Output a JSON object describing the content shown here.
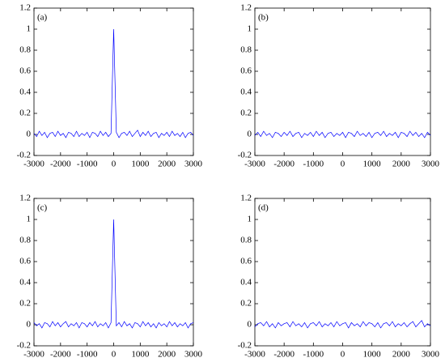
{
  "chart_data": [
    {
      "type": "line",
      "label": "(a)",
      "color": "#0000ff",
      "x": [
        -3000,
        -2900,
        -2800,
        -2700,
        -2600,
        -2500,
        -2400,
        -2300,
        -2200,
        -2100,
        -2000,
        -1900,
        -1800,
        -1700,
        -1600,
        -1500,
        -1400,
        -1300,
        -1200,
        -1100,
        -1000,
        -900,
        -800,
        -700,
        -600,
        -500,
        -400,
        -300,
        -200,
        -100,
        0,
        100,
        200,
        300,
        400,
        500,
        600,
        700,
        800,
        900,
        1000,
        1100,
        1200,
        1300,
        1400,
        1500,
        1600,
        1700,
        1800,
        1900,
        2000,
        2100,
        2200,
        2300,
        2400,
        2500,
        2600,
        2700,
        2800,
        2900,
        3000
      ],
      "values": [
        0.01,
        -0.02,
        0.03,
        -0.01,
        0.02,
        -0.03,
        0.01,
        0.02,
        -0.02,
        0.03,
        -0.01,
        0.01,
        -0.03,
        0.02,
        0.01,
        -0.02,
        0.03,
        -0.02,
        0.01,
        -0.01,
        0.02,
        -0.03,
        0.02,
        0.01,
        -0.02,
        0.03,
        -0.01,
        0.02,
        -0.02,
        0.01,
        1,
        0.02,
        -0.03,
        0.01,
        0.02,
        -0.01,
        0.03,
        -0.02,
        0.01,
        0.04,
        -0.02,
        0.02,
        -0.01,
        0.03,
        -0.02,
        0.01,
        0.02,
        -0.03,
        0.01,
        -0.01,
        0.02,
        -0.02,
        0.03,
        -0.01,
        0.01,
        -0.02,
        0.02,
        -0.03,
        0.01,
        0.02,
        -0.01
      ],
      "xlim": [
        -3000,
        3000
      ],
      "ylim": [
        -0.2,
        1.2
      ],
      "xticks": [
        -3000,
        -2000,
        -1000,
        0,
        1000,
        2000,
        3000
      ],
      "yticks": [
        -0.2,
        0,
        0.2,
        0.4,
        0.6,
        0.8,
        1,
        1.2
      ]
    },
    {
      "type": "line",
      "label": "(b)",
      "color": "#0000ff",
      "x": [
        -3000,
        -2900,
        -2800,
        -2700,
        -2600,
        -2500,
        -2400,
        -2300,
        -2200,
        -2100,
        -2000,
        -1900,
        -1800,
        -1700,
        -1600,
        -1500,
        -1400,
        -1300,
        -1200,
        -1100,
        -1000,
        -900,
        -800,
        -700,
        -600,
        -500,
        -400,
        -300,
        -200,
        -100,
        0,
        100,
        200,
        300,
        400,
        500,
        600,
        700,
        800,
        900,
        1000,
        1100,
        1200,
        1300,
        1400,
        1500,
        1600,
        1700,
        1800,
        1900,
        2000,
        2100,
        2200,
        2300,
        2400,
        2500,
        2600,
        2700,
        2800,
        2900,
        3000
      ],
      "values": [
        -0.01,
        0.02,
        -0.02,
        0.03,
        -0.01,
        0.01,
        -0.03,
        0.02,
        0.01,
        -0.02,
        0.02,
        -0.01,
        0.03,
        -0.02,
        0.01,
        0.02,
        -0.03,
        0.01,
        -0.01,
        0.02,
        -0.02,
        0.03,
        -0.01,
        0.02,
        -0.03,
        0.01,
        0.02,
        -0.02,
        0.01,
        -0.01,
        0.02,
        -0.03,
        0.02,
        0.01,
        -0.02,
        0.03,
        -0.01,
        0.01,
        -0.02,
        0.02,
        -0.03,
        0.01,
        0.02,
        -0.01,
        0.03,
        -0.02,
        0.01,
        -0.01,
        0.02,
        -0.03,
        0.02,
        0.01,
        -0.02,
        0.03,
        -0.01,
        0.02,
        -0.02,
        0.01,
        -0.03,
        0.02,
        -0.01
      ],
      "xlim": [
        -3000,
        3000
      ],
      "ylim": [
        -0.2,
        1.2
      ],
      "xticks": [
        -3000,
        -2000,
        -1000,
        0,
        1000,
        2000,
        3000
      ],
      "yticks": [
        -0.2,
        0,
        0.2,
        0.4,
        0.6,
        0.8,
        1,
        1.2
      ]
    },
    {
      "type": "line",
      "label": "(c)",
      "color": "#0000ff",
      "x": [
        -3000,
        -2900,
        -2800,
        -2700,
        -2600,
        -2500,
        -2400,
        -2300,
        -2200,
        -2100,
        -2000,
        -1900,
        -1800,
        -1700,
        -1600,
        -1500,
        -1400,
        -1300,
        -1200,
        -1100,
        -1000,
        -900,
        -800,
        -700,
        -600,
        -500,
        -400,
        -300,
        -200,
        -100,
        0,
        100,
        200,
        300,
        400,
        500,
        600,
        700,
        800,
        900,
        1000,
        1100,
        1200,
        1300,
        1400,
        1500,
        1600,
        1700,
        1800,
        1900,
        2000,
        2100,
        2200,
        2300,
        2400,
        2500,
        2600,
        2700,
        2800,
        2900,
        3000
      ],
      "values": [
        0.02,
        -0.01,
        0.01,
        -0.03,
        0.02,
        0.01,
        -0.02,
        0.03,
        -0.01,
        0.02,
        -0.02,
        0.01,
        0.03,
        -0.02,
        0.01,
        -0.01,
        0.02,
        -0.03,
        0.02,
        0.01,
        -0.02,
        0.02,
        -0.01,
        0.03,
        -0.02,
        0.01,
        -0.01,
        0.02,
        -0.03,
        0.02,
        1,
        -0.01,
        0.02,
        -0.02,
        0.03,
        -0.01,
        0.01,
        -0.03,
        0.02,
        0.01,
        -0.02,
        0.03,
        -0.01,
        0.02,
        -0.02,
        0.01,
        -0.03,
        0.02,
        -0.01,
        0.01,
        -0.02,
        0.03,
        -0.01,
        0.02,
        -0.02,
        0.01,
        -0.01,
        0.02,
        -0.03,
        0.01,
        0.02
      ],
      "xlim": [
        -3000,
        3000
      ],
      "ylim": [
        -0.2,
        1.2
      ],
      "xticks": [
        -3000,
        -2000,
        -1000,
        0,
        1000,
        2000,
        3000
      ],
      "yticks": [
        -0.2,
        0,
        0.2,
        0.4,
        0.6,
        0.8,
        1,
        1.2
      ]
    },
    {
      "type": "line",
      "label": "(d)",
      "color": "#0000ff",
      "x": [
        -3000,
        -2900,
        -2800,
        -2700,
        -2600,
        -2500,
        -2400,
        -2300,
        -2200,
        -2100,
        -2000,
        -1900,
        -1800,
        -1700,
        -1600,
        -1500,
        -1400,
        -1300,
        -1200,
        -1100,
        -1000,
        -900,
        -800,
        -700,
        -600,
        -500,
        -400,
        -300,
        -200,
        -100,
        0,
        100,
        200,
        300,
        400,
        500,
        600,
        700,
        800,
        900,
        1000,
        1100,
        1200,
        1300,
        1400,
        1500,
        1600,
        1700,
        1800,
        1900,
        2000,
        2100,
        2200,
        2300,
        2400,
        2500,
        2600,
        2700,
        2800,
        2900,
        3000
      ],
      "values": [
        -0.02,
        0.01,
        0.02,
        -0.01,
        0.03,
        -0.02,
        0.01,
        -0.03,
        0.02,
        -0.01,
        0.01,
        0.02,
        -0.02,
        0.03,
        -0.01,
        0.01,
        -0.02,
        0.02,
        -0.03,
        0.01,
        0.02,
        -0.01,
        0.03,
        -0.02,
        0.01,
        -0.01,
        0.02,
        -0.02,
        0.03,
        -0.01,
        0.01,
        0.02,
        -0.03,
        0.02,
        -0.01,
        0.01,
        -0.02,
        0.03,
        -0.01,
        0.02,
        0.01,
        -0.02,
        0.02,
        -0.03,
        0.01,
        0.02,
        -0.01,
        0.03,
        -0.02,
        0.01,
        -0.01,
        0.02,
        -0.02,
        0.01,
        0.03,
        -0.02,
        0.01,
        0.04,
        -0.02,
        0.01,
        -0.01
      ],
      "xlim": [
        -3000,
        3000
      ],
      "ylim": [
        -0.2,
        1.2
      ],
      "xticks": [
        -3000,
        -2000,
        -1000,
        0,
        1000,
        2000,
        3000
      ],
      "yticks": [
        -0.2,
        0,
        0.2,
        0.4,
        0.6,
        0.8,
        1,
        1.2
      ]
    }
  ]
}
